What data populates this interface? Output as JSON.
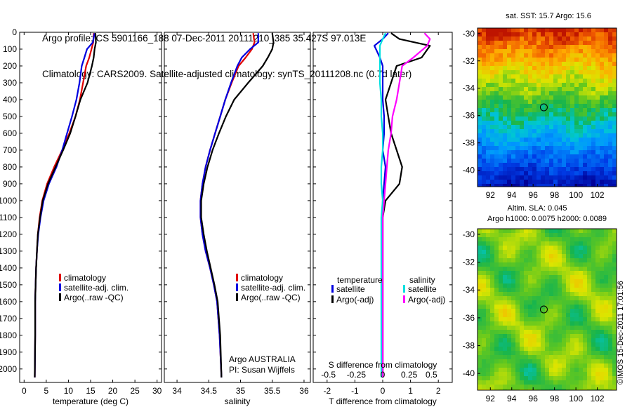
{
  "header": {
    "line1": "Argo profile: CS 5901166_188 07-Dec-2011 20111210_385 35.427S 97.013E",
    "line2": "Climatology: CARS2009. Satellite-adjusted climatology: synTS_20111208.nc (0.7d later)"
  },
  "watermark": "©IMOS 15-Dec-2011 17:01:56",
  "colors": {
    "climatology": "#e00000",
    "satellite": "#0000e0",
    "argo": "#000000",
    "satellite_s": "#00e0e0",
    "argo_s": "#ff00ff"
  },
  "chart_data": [
    {
      "type": "line",
      "xlabel": "temperature (deg C)",
      "xlim": [
        -1,
        31
      ],
      "ylim": [
        2080,
        0
      ],
      "xticks": [
        0,
        5,
        10,
        15,
        20,
        25,
        30
      ],
      "yticks": [
        0,
        100,
        200,
        300,
        400,
        500,
        600,
        700,
        800,
        900,
        1000,
        1100,
        1200,
        1300,
        1400,
        1500,
        1600,
        1700,
        1800,
        1900,
        2000
      ],
      "legend": [
        "climatology",
        "satellite-adj. clim.",
        "Argo(..raw -QC)"
      ],
      "series": [
        {
          "name": "climatology",
          "color": "#e00000",
          "x": [
            15.7,
            15.6,
            15.2,
            14.7,
            14.0,
            13.3,
            12.6,
            11.6,
            10.2,
            8.6,
            6.8,
            5.2,
            4.1,
            3.5,
            3.1,
            2.9,
            2.7,
            2.6,
            2.5,
            2.5,
            2.4
          ],
          "y": [
            5,
            60,
            100,
            150,
            200,
            300,
            400,
            500,
            600,
            700,
            800,
            900,
            1000,
            1100,
            1200,
            1300,
            1400,
            1500,
            1600,
            1800,
            2050
          ]
        },
        {
          "name": "satellite-adj. clim.",
          "color": "#0000e0",
          "x": [
            15.9,
            15.5,
            14.2,
            13.6,
            13.0,
            12.5,
            11.8,
            10.8,
            9.7,
            8.6,
            7.3,
            5.6,
            4.4,
            3.7,
            3.2,
            2.9,
            2.7,
            2.6,
            2.5,
            2.5,
            2.4
          ],
          "y": [
            5,
            60,
            100,
            150,
            200,
            300,
            400,
            500,
            600,
            700,
            800,
            900,
            1000,
            1100,
            1200,
            1300,
            1400,
            1500,
            1600,
            1800,
            2050
          ]
        },
        {
          "name": "Argo(..raw -QC)",
          "color": "#000000",
          "x": [
            16.1,
            16.2,
            15.9,
            15.7,
            15.3,
            14.3,
            12.7,
            11.6,
            10.4,
            8.8,
            7.1,
            5.4,
            4.2,
            3.6,
            3.1,
            2.9,
            2.7,
            2.6,
            2.5,
            2.5,
            2.4
          ],
          "y": [
            5,
            60,
            100,
            150,
            200,
            300,
            400,
            500,
            600,
            700,
            800,
            900,
            1000,
            1100,
            1200,
            1300,
            1400,
            1500,
            1600,
            1800,
            2050
          ]
        }
      ]
    },
    {
      "type": "line",
      "xlabel": "salinity",
      "xlim": [
        33.8,
        36.1
      ],
      "ylim": [
        2080,
        0
      ],
      "xticks": [
        34,
        34.5,
        35,
        35.5,
        36
      ],
      "legend": [
        "climatology",
        "satellite-adj. clim.",
        "Argo(..raw -QC)"
      ],
      "annotations": [
        "Argo AUSTRALIA",
        "PI: Susan Wijffels"
      ],
      "series": [
        {
          "name": "climatology",
          "color": "#e00000",
          "x": [
            35.2,
            35.22,
            35.18,
            35.08,
            34.97,
            34.86,
            34.76,
            34.68,
            34.6,
            34.52,
            34.45,
            34.4,
            34.37,
            34.37,
            34.4,
            34.45,
            34.52,
            34.58,
            34.63,
            34.67,
            34.7
          ],
          "y": [
            5,
            60,
            100,
            150,
            200,
            300,
            400,
            500,
            600,
            700,
            800,
            900,
            1000,
            1100,
            1200,
            1300,
            1400,
            1500,
            1600,
            1800,
            2050
          ]
        },
        {
          "name": "satellite-adj. clim.",
          "color": "#0000e0",
          "x": [
            35.28,
            35.28,
            35.15,
            35.02,
            34.95,
            34.85,
            34.76,
            34.68,
            34.6,
            34.52,
            34.45,
            34.4,
            34.37,
            34.37,
            34.4,
            34.45,
            34.52,
            34.58,
            34.63,
            34.67,
            34.7
          ],
          "y": [
            5,
            60,
            100,
            150,
            200,
            300,
            400,
            500,
            600,
            700,
            800,
            900,
            1000,
            1100,
            1200,
            1300,
            1400,
            1500,
            1600,
            1800,
            2050
          ]
        },
        {
          "name": "Argo(..raw -QC)",
          "color": "#000000",
          "x": [
            35.5,
            35.52,
            35.5,
            35.43,
            35.35,
            35.12,
            34.9,
            34.77,
            34.66,
            34.56,
            34.48,
            34.42,
            34.38,
            34.38,
            34.42,
            34.47,
            34.53,
            34.59,
            34.64,
            34.68,
            34.7
          ],
          "y": [
            5,
            60,
            100,
            150,
            200,
            300,
            400,
            500,
            600,
            700,
            800,
            900,
            1000,
            1100,
            1200,
            1300,
            1400,
            1500,
            1600,
            1800,
            2050
          ]
        }
      ]
    },
    {
      "type": "line",
      "xlabel": "T difference from climatology",
      "top_label": "S difference from climatology",
      "xlim": [
        -2.5,
        2.5
      ],
      "ylim": [
        2080,
        0
      ],
      "xticks": [
        -2,
        -1,
        0,
        1,
        2
      ],
      "top_xticks": [
        "-0.5",
        "-0.25",
        "0",
        "0.25",
        "0.5"
      ],
      "legend_t_title": "temperature",
      "legend_s_title": "salinity",
      "legend": [
        "satellite",
        "Argo(-adj)",
        "satellite",
        "Argo(-adj)"
      ],
      "series": [
        {
          "name": "satellite",
          "color": "#0000e0",
          "x": [
            0.2,
            0.0,
            -0.3,
            -0.1,
            0.0,
            0.0,
            0.0,
            0.05,
            0.05,
            0.0,
            0.1,
            0.05,
            0.0,
            0.0,
            0.0,
            0.0,
            0.0,
            0.0,
            0.0,
            0.0
          ],
          "y": [
            5,
            40,
            80,
            150,
            200,
            300,
            400,
            500,
            600,
            700,
            800,
            900,
            1000,
            1100,
            1200,
            1400,
            1600,
            1800,
            1900,
            2050
          ]
        },
        {
          "name": "Argo(-adj)",
          "color": "#000000",
          "x": [
            0.3,
            0.6,
            1.7,
            1.4,
            0.5,
            0.3,
            0.1,
            0.2,
            0.3,
            0.5,
            0.7,
            0.6,
            0.1,
            0.0,
            0.0,
            0.0,
            0.0,
            0.0,
            0.0,
            0.0
          ],
          "y": [
            5,
            40,
            80,
            150,
            200,
            300,
            400,
            500,
            600,
            700,
            800,
            900,
            1000,
            1100,
            1200,
            1400,
            1600,
            1800,
            1900,
            2050
          ]
        },
        {
          "name": "satellite",
          "color": "#00e0e0",
          "x": [
            0.1,
            0.0,
            -0.1,
            -0.1,
            -0.1,
            -0.1,
            -0.05,
            -0.05,
            0.0,
            0.0,
            -0.05,
            -0.05,
            0.0,
            -0.05,
            -0.05,
            -0.05,
            -0.05,
            -0.05,
            -0.05,
            -0.05
          ],
          "y": [
            5,
            40,
            80,
            150,
            200,
            300,
            400,
            500,
            600,
            700,
            800,
            900,
            1000,
            1100,
            1200,
            1400,
            1600,
            1800,
            1900,
            2050
          ]
        },
        {
          "name": "Argo(-adj)",
          "color": "#ff00ff",
          "x": [
            1.5,
            1.7,
            1.6,
            1.1,
            0.7,
            0.6,
            0.5,
            0.35,
            0.3,
            0.2,
            0.15,
            0.1,
            0.05,
            0.0,
            0.0,
            0.0,
            0.0,
            0.0,
            0.0,
            0.0
          ],
          "y": [
            5,
            40,
            80,
            150,
            200,
            300,
            400,
            500,
            600,
            700,
            800,
            900,
            1000,
            1100,
            1200,
            1400,
            1600,
            1800,
            1900,
            2050
          ]
        }
      ]
    },
    {
      "type": "heatmap",
      "title": "sat. SST: 15.7  Argo: 15.6",
      "xlim": [
        90.8,
        103.8
      ],
      "ylim": [
        -41.2,
        -29.6
      ],
      "xticks": [
        92,
        94,
        96,
        98,
        100,
        102
      ],
      "yticks": [
        -30,
        -32,
        -34,
        -36,
        -38,
        -40
      ],
      "marker": {
        "x": 97.0,
        "y": -35.4
      }
    },
    {
      "type": "heatmap",
      "title": "Altim. SLA: 0.045",
      "subtitle": "Argo h1000: 0.0075 h2000: 0.0089",
      "xlim": [
        90.8,
        103.8
      ],
      "ylim": [
        -41.2,
        -29.6
      ],
      "xticks": [
        92,
        94,
        96,
        98,
        100,
        102
      ],
      "yticks": [
        -30,
        -32,
        -34,
        -36,
        -38,
        -40
      ],
      "marker": {
        "x": 97.0,
        "y": -35.4
      }
    }
  ]
}
